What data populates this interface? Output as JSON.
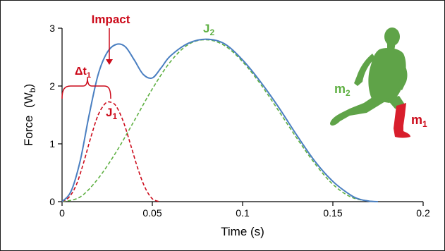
{
  "chart_data": {
    "type": "line",
    "title": "",
    "xlabel": "Time (s)",
    "ylabel_main": "Force",
    "ylabel_unit_base": "W",
    "ylabel_unit_sub": "b",
    "xlim": [
      0,
      0.2
    ],
    "ylim": [
      0,
      3
    ],
    "xticks": [
      0,
      0.05,
      0.1,
      0.15,
      0.2
    ],
    "xtick_labels": [
      "0",
      "0.05",
      "0.1",
      "0.15",
      "0.2"
    ],
    "yticks": [
      0,
      1,
      2,
      3
    ],
    "ytick_labels": [
      "0",
      "1",
      "2",
      "3"
    ],
    "grid": false,
    "series": [
      {
        "name": "",
        "style": "solid",
        "color": "#4a7fc1",
        "x": [
          0,
          0.005,
          0.01,
          0.015,
          0.02,
          0.025,
          0.03,
          0.035,
          0.04,
          0.045,
          0.05,
          0.055,
          0.06,
          0.07,
          0.08,
          0.09,
          0.1,
          0.11,
          0.12,
          0.13,
          0.14,
          0.15,
          0.16,
          0.165,
          0.17,
          0.175
        ],
        "y": [
          0,
          0.18,
          0.7,
          1.5,
          2.2,
          2.58,
          2.72,
          2.68,
          2.45,
          2.2,
          2.14,
          2.32,
          2.52,
          2.74,
          2.81,
          2.73,
          2.45,
          2.07,
          1.63,
          1.15,
          0.7,
          0.35,
          0.11,
          0.04,
          0.01,
          0
        ]
      },
      {
        "name": "",
        "style": "dashed",
        "color": "#cc0a1a",
        "x": [
          0,
          0.004,
          0.008,
          0.012,
          0.016,
          0.02,
          0.024,
          0.027,
          0.03,
          0.034,
          0.038,
          0.042,
          0.046,
          0.05,
          0.054
        ],
        "y": [
          0,
          0.08,
          0.3,
          0.68,
          1.12,
          1.5,
          1.7,
          1.72,
          1.65,
          1.38,
          0.98,
          0.57,
          0.24,
          0.05,
          0
        ]
      },
      {
        "name": "",
        "style": "dashed",
        "color": "#5fb043",
        "x": [
          0,
          0.01,
          0.02,
          0.03,
          0.04,
          0.05,
          0.06,
          0.07,
          0.08,
          0.09,
          0.1,
          0.11,
          0.12,
          0.13,
          0.14,
          0.15,
          0.16,
          0.17,
          0.175
        ],
        "y": [
          0,
          0.08,
          0.4,
          0.86,
          1.4,
          1.95,
          2.42,
          2.72,
          2.8,
          2.7,
          2.42,
          2.03,
          1.57,
          1.1,
          0.66,
          0.3,
          0.08,
          0.01,
          0
        ]
      }
    ],
    "annotations": {
      "impact": "Impact",
      "delta_t_symbol": "Δt",
      "delta_t_sub": "1",
      "j1": "J",
      "j1_sub": "1",
      "j2": "J",
      "j2_sub": "2",
      "m1": "m",
      "m1_sub": "1",
      "m2": "m",
      "m2_sub": "2"
    },
    "colors": {
      "axis": "#000000",
      "total_force": "#4a7fc1",
      "impact_force": "#cc0a1a",
      "body_force": "#5fb043",
      "runner_body": "#5fa348",
      "runner_leg": "#d81e2c"
    }
  }
}
